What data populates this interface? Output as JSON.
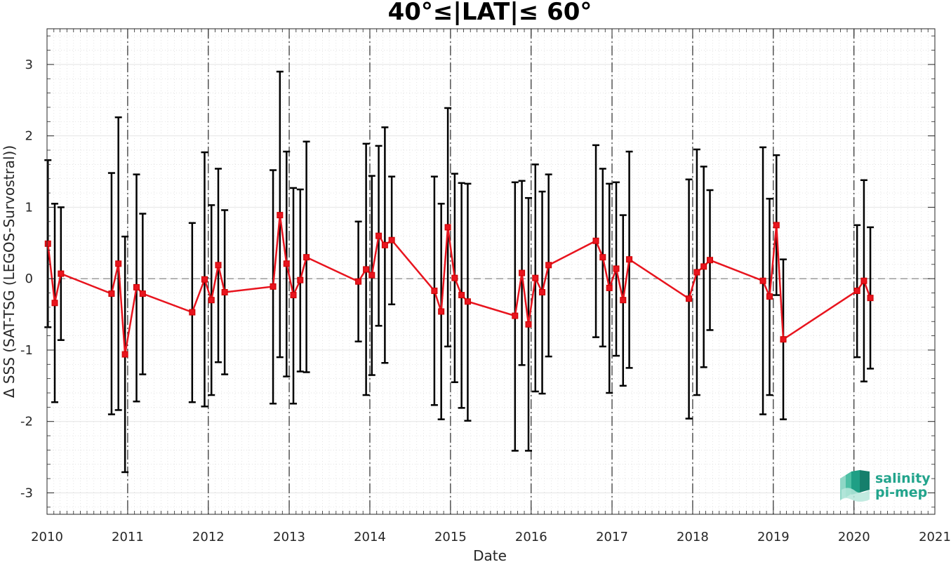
{
  "chart_data": {
    "type": "line",
    "title": "40°≤|LAT|≤ 60°",
    "xlabel": "Date",
    "ylabel": "Δ SSS (SAT-TSG (LEGOS-Survostral))",
    "xlim": [
      "2010-01-01",
      "2021-01-01"
    ],
    "ylim": [
      -3.3,
      3.5
    ],
    "x_ticks": [
      "2010",
      "2011",
      "2012",
      "2013",
      "2014",
      "2015",
      "2016",
      "2017",
      "2018",
      "2019",
      "2020",
      "2021"
    ],
    "y_ticks": [
      "-3",
      "-2",
      "-1",
      "0",
      "1",
      "2",
      "3"
    ],
    "grid": true,
    "reference_line_y": 0,
    "year_boundary_lines": [
      "2011-01-01",
      "2012-01-01",
      "2013-01-01",
      "2014-01-01",
      "2015-01-01",
      "2016-01-01",
      "2017-01-01",
      "2018-01-01",
      "2019-01-01",
      "2020-01-01"
    ],
    "colors": {
      "series": "#e8141e",
      "errorbar": "#000000",
      "zero_line": "#808080"
    },
    "series": [
      {
        "points": [
          {
            "x": "2010-01-05",
            "y": 0.49,
            "low": -0.68,
            "high": 1.66
          },
          {
            "x": "2010-02-05",
            "y": -0.34,
            "low": -1.73,
            "high": 1.05
          },
          {
            "x": "2010-03-05",
            "y": 0.07,
            "low": -0.86,
            "high": 1.0
          },
          {
            "x": "2010-10-20",
            "y": -0.21,
            "low": -1.9,
            "high": 1.48
          },
          {
            "x": "2010-11-20",
            "y": 0.21,
            "low": -1.84,
            "high": 2.26
          },
          {
            "x": "2010-12-20",
            "y": -1.06,
            "low": -2.71,
            "high": 0.59
          },
          {
            "x": "2011-02-10",
            "y": -0.12,
            "low": -1.72,
            "high": 1.46
          },
          {
            "x": "2011-03-10",
            "y": -0.21,
            "low": -1.34,
            "high": 0.91
          },
          {
            "x": "2011-10-20",
            "y": -0.47,
            "low": -1.73,
            "high": 0.78
          },
          {
            "x": "2011-12-15",
            "y": -0.01,
            "low": -1.79,
            "high": 1.77
          },
          {
            "x": "2012-01-15",
            "y": -0.3,
            "low": -1.63,
            "high": 1.03
          },
          {
            "x": "2012-02-15",
            "y": 0.19,
            "low": -1.17,
            "high": 1.54
          },
          {
            "x": "2012-03-15",
            "y": -0.19,
            "low": -1.34,
            "high": 0.96
          },
          {
            "x": "2012-10-20",
            "y": -0.11,
            "low": -1.75,
            "high": 1.52
          },
          {
            "x": "2012-11-20",
            "y": 0.89,
            "low": -1.1,
            "high": 2.9
          },
          {
            "x": "2012-12-20",
            "y": 0.21,
            "low": -1.37,
            "high": 1.78
          },
          {
            "x": "2013-01-20",
            "y": -0.23,
            "low": -1.75,
            "high": 1.27
          },
          {
            "x": "2013-02-20",
            "y": -0.02,
            "low": -1.3,
            "high": 1.25
          },
          {
            "x": "2013-03-20",
            "y": 0.3,
            "low": -1.31,
            "high": 1.92
          },
          {
            "x": "2013-11-10",
            "y": -0.04,
            "low": -0.88,
            "high": 0.8
          },
          {
            "x": "2013-12-15",
            "y": 0.13,
            "low": -1.63,
            "high": 1.89
          },
          {
            "x": "2014-01-10",
            "y": 0.05,
            "low": -1.35,
            "high": 1.44
          },
          {
            "x": "2014-02-10",
            "y": 0.6,
            "low": -0.66,
            "high": 1.86
          },
          {
            "x": "2014-03-10",
            "y": 0.47,
            "low": -1.18,
            "high": 2.12
          },
          {
            "x": "2014-04-10",
            "y": 0.54,
            "low": -0.36,
            "high": 1.43
          },
          {
            "x": "2014-10-20",
            "y": -0.17,
            "low": -1.77,
            "high": 1.43
          },
          {
            "x": "2014-11-20",
            "y": -0.46,
            "low": -1.97,
            "high": 1.05
          },
          {
            "x": "2014-12-20",
            "y": 0.72,
            "low": -0.95,
            "high": 2.39
          },
          {
            "x": "2015-01-20",
            "y": 0.01,
            "low": -1.45,
            "high": 1.47
          },
          {
            "x": "2015-02-20",
            "y": -0.23,
            "low": -1.81,
            "high": 1.34
          },
          {
            "x": "2015-03-20",
            "y": -0.32,
            "low": -1.99,
            "high": 1.33
          },
          {
            "x": "2015-10-20",
            "y": -0.52,
            "low": -2.41,
            "high": 1.35
          },
          {
            "x": "2015-11-20",
            "y": 0.08,
            "low": -1.21,
            "high": 1.37
          },
          {
            "x": "2015-12-20",
            "y": -0.64,
            "low": -2.41,
            "high": 1.13
          },
          {
            "x": "2016-01-20",
            "y": 0.01,
            "low": -1.58,
            "high": 1.6
          },
          {
            "x": "2016-02-20",
            "y": -0.19,
            "low": -1.61,
            "high": 1.22
          },
          {
            "x": "2016-03-20",
            "y": 0.19,
            "low": -1.09,
            "high": 1.46
          },
          {
            "x": "2016-10-20",
            "y": 0.53,
            "low": -0.82,
            "high": 1.87
          },
          {
            "x": "2016-11-20",
            "y": 0.3,
            "low": -0.95,
            "high": 1.54
          },
          {
            "x": "2016-12-20",
            "y": -0.13,
            "low": -1.6,
            "high": 1.33
          },
          {
            "x": "2017-01-20",
            "y": 0.14,
            "low": -1.08,
            "high": 1.35
          },
          {
            "x": "2017-02-20",
            "y": -0.3,
            "low": -1.5,
            "high": 0.89
          },
          {
            "x": "2017-03-20",
            "y": 0.27,
            "low": -1.25,
            "high": 1.78
          },
          {
            "x": "2017-12-15",
            "y": -0.28,
            "low": -1.96,
            "high": 1.39
          },
          {
            "x": "2018-01-20",
            "y": 0.09,
            "low": -1.63,
            "high": 1.81
          },
          {
            "x": "2018-02-20",
            "y": 0.17,
            "low": -1.24,
            "high": 1.57
          },
          {
            "x": "2018-03-20",
            "y": 0.26,
            "low": -0.72,
            "high": 1.24
          },
          {
            "x": "2018-11-15",
            "y": -0.03,
            "low": -1.9,
            "high": 1.84
          },
          {
            "x": "2018-12-15",
            "y": -0.25,
            "low": -1.63,
            "high": 1.12
          },
          {
            "x": "2019-01-15",
            "y": 0.75,
            "low": -0.23,
            "high": 1.73
          },
          {
            "x": "2019-02-15",
            "y": -0.85,
            "low": -1.97,
            "high": 0.27
          },
          {
            "x": "2020-01-15",
            "y": -0.17,
            "low": -1.1,
            "high": 0.75
          },
          {
            "x": "2020-02-15",
            "y": -0.03,
            "low": -1.44,
            "high": 1.38
          },
          {
            "x": "2020-03-15",
            "y": -0.27,
            "low": -1.26,
            "high": 0.72
          }
        ]
      }
    ]
  },
  "logo": {
    "line1": "salinity",
    "line2": "pi-mep",
    "color": "#22a48c"
  }
}
